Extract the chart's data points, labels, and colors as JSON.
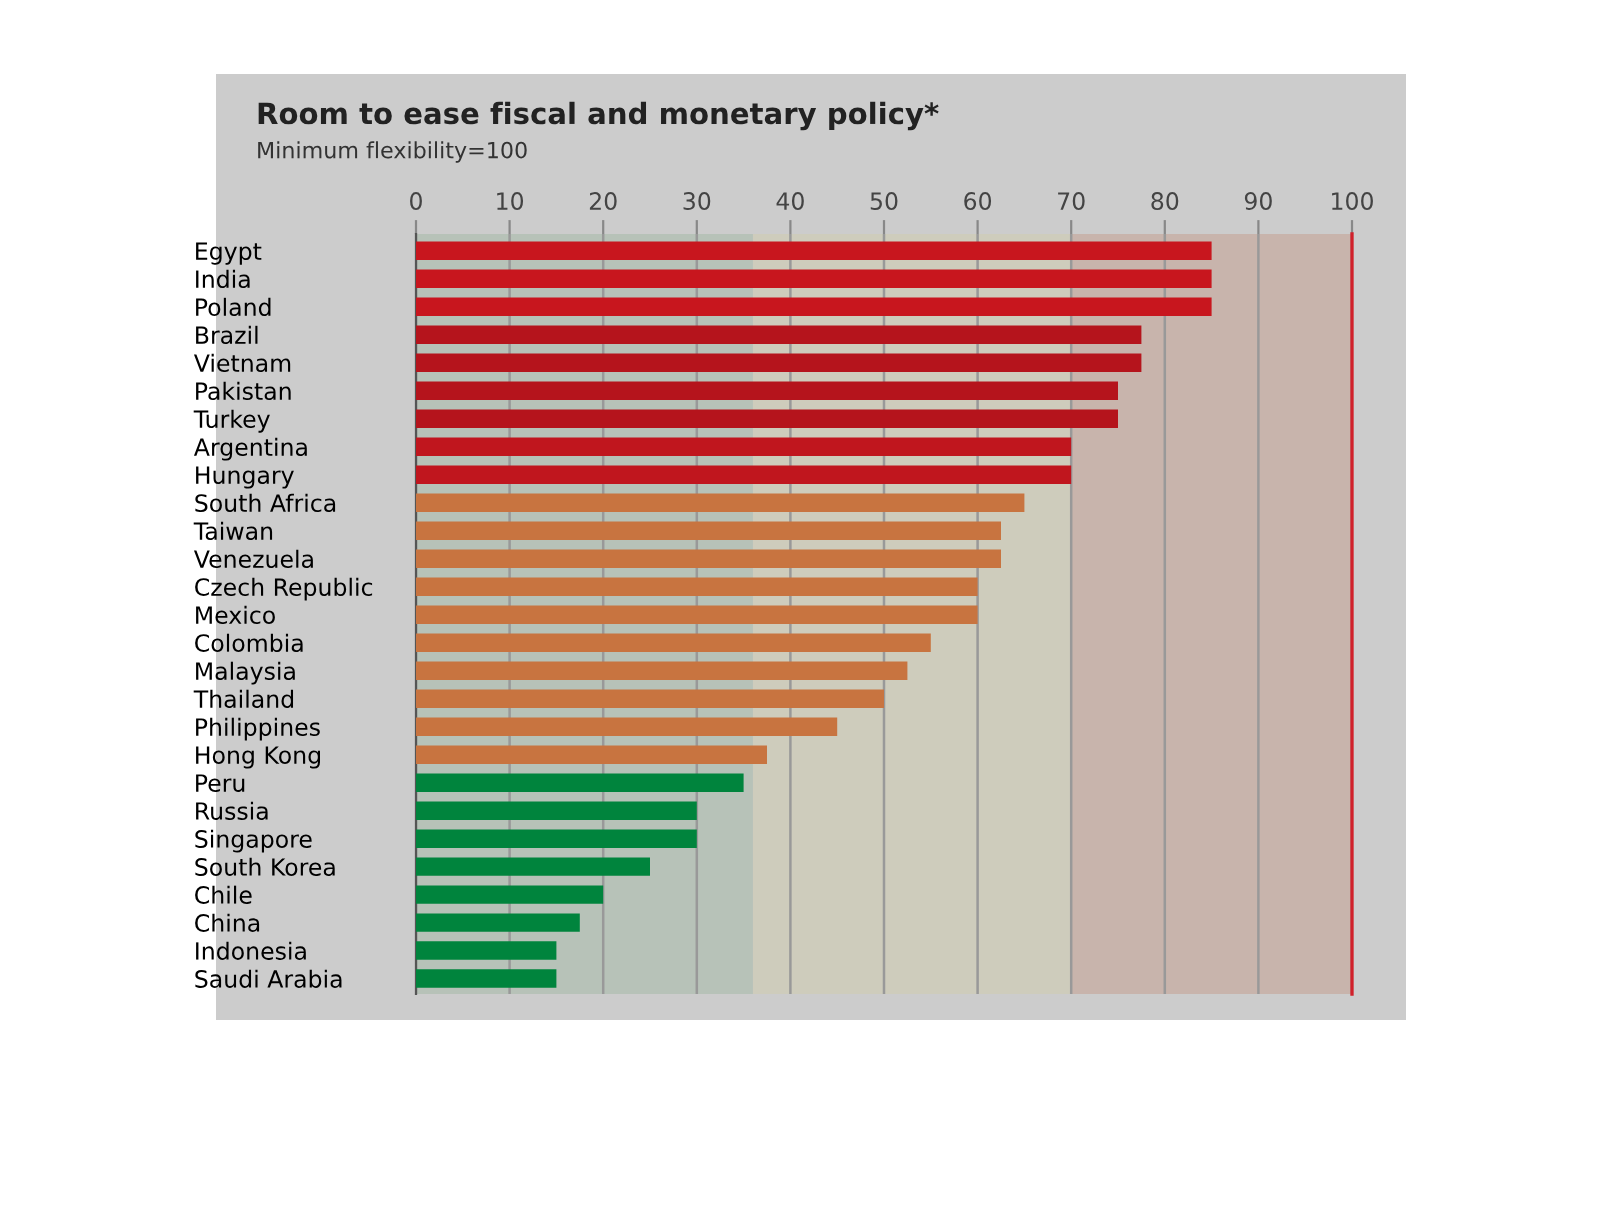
{
  "chart_data": {
    "type": "bar",
    "orientation": "horizontal",
    "title": "Room to ease fiscal and monetary policy*",
    "subtitle": "Minimum flexibility=100",
    "categories": [
      "Egypt",
      "India",
      "Poland",
      "Brazil",
      "Vietnam",
      "Pakistan",
      "Turkey",
      "Argentina",
      "Hungary",
      "South Africa",
      "Taiwan",
      "Venezuela",
      "Czech Republic",
      "Mexico",
      "Colombia",
      "Malaysia",
      "Thailand",
      "Philippines",
      "Hong Kong",
      "Peru",
      "Russia",
      "Singapore",
      "South Korea",
      "Chile",
      "China",
      "Indonesia",
      "Saudi Arabia"
    ],
    "values": [
      85,
      85,
      85,
      77.5,
      77.5,
      75,
      75,
      70,
      70,
      65,
      62.5,
      62.5,
      60,
      60,
      55,
      52.5,
      50,
      45,
      37.5,
      35,
      30,
      30,
      25,
      20,
      17.5,
      15,
      15
    ],
    "colors": [
      "#c8161e",
      "#c8161e",
      "#c8161e",
      "#b5141c",
      "#b5141c",
      "#b5141c",
      "#b5141c",
      "#c0161e",
      "#c0161e",
      "#c87440",
      "#c87440",
      "#c87440",
      "#c87440",
      "#c87440",
      "#c87440",
      "#c87440",
      "#c87440",
      "#c87440",
      "#c87440",
      "#00843d",
      "#00843d",
      "#00843d",
      "#00843d",
      "#00843d",
      "#00843d",
      "#00843d",
      "#00843d"
    ],
    "xlim": [
      0,
      100
    ],
    "xticks": [
      0,
      10,
      20,
      30,
      40,
      50,
      60,
      70,
      80,
      90,
      100
    ],
    "grid": "x",
    "bands": [
      {
        "axis": "x",
        "from": 0,
        "to": 36,
        "color": "#b7c2b8"
      },
      {
        "axis": "x",
        "from": 36,
        "to": 70,
        "color": "#ceccbc"
      },
      {
        "axis": "x",
        "from": 70,
        "to": 100,
        "color": "#c8b4ac"
      }
    ],
    "ref_lines": [
      {
        "axis": "x",
        "value": 100,
        "color": "#d0202a"
      }
    ]
  }
}
